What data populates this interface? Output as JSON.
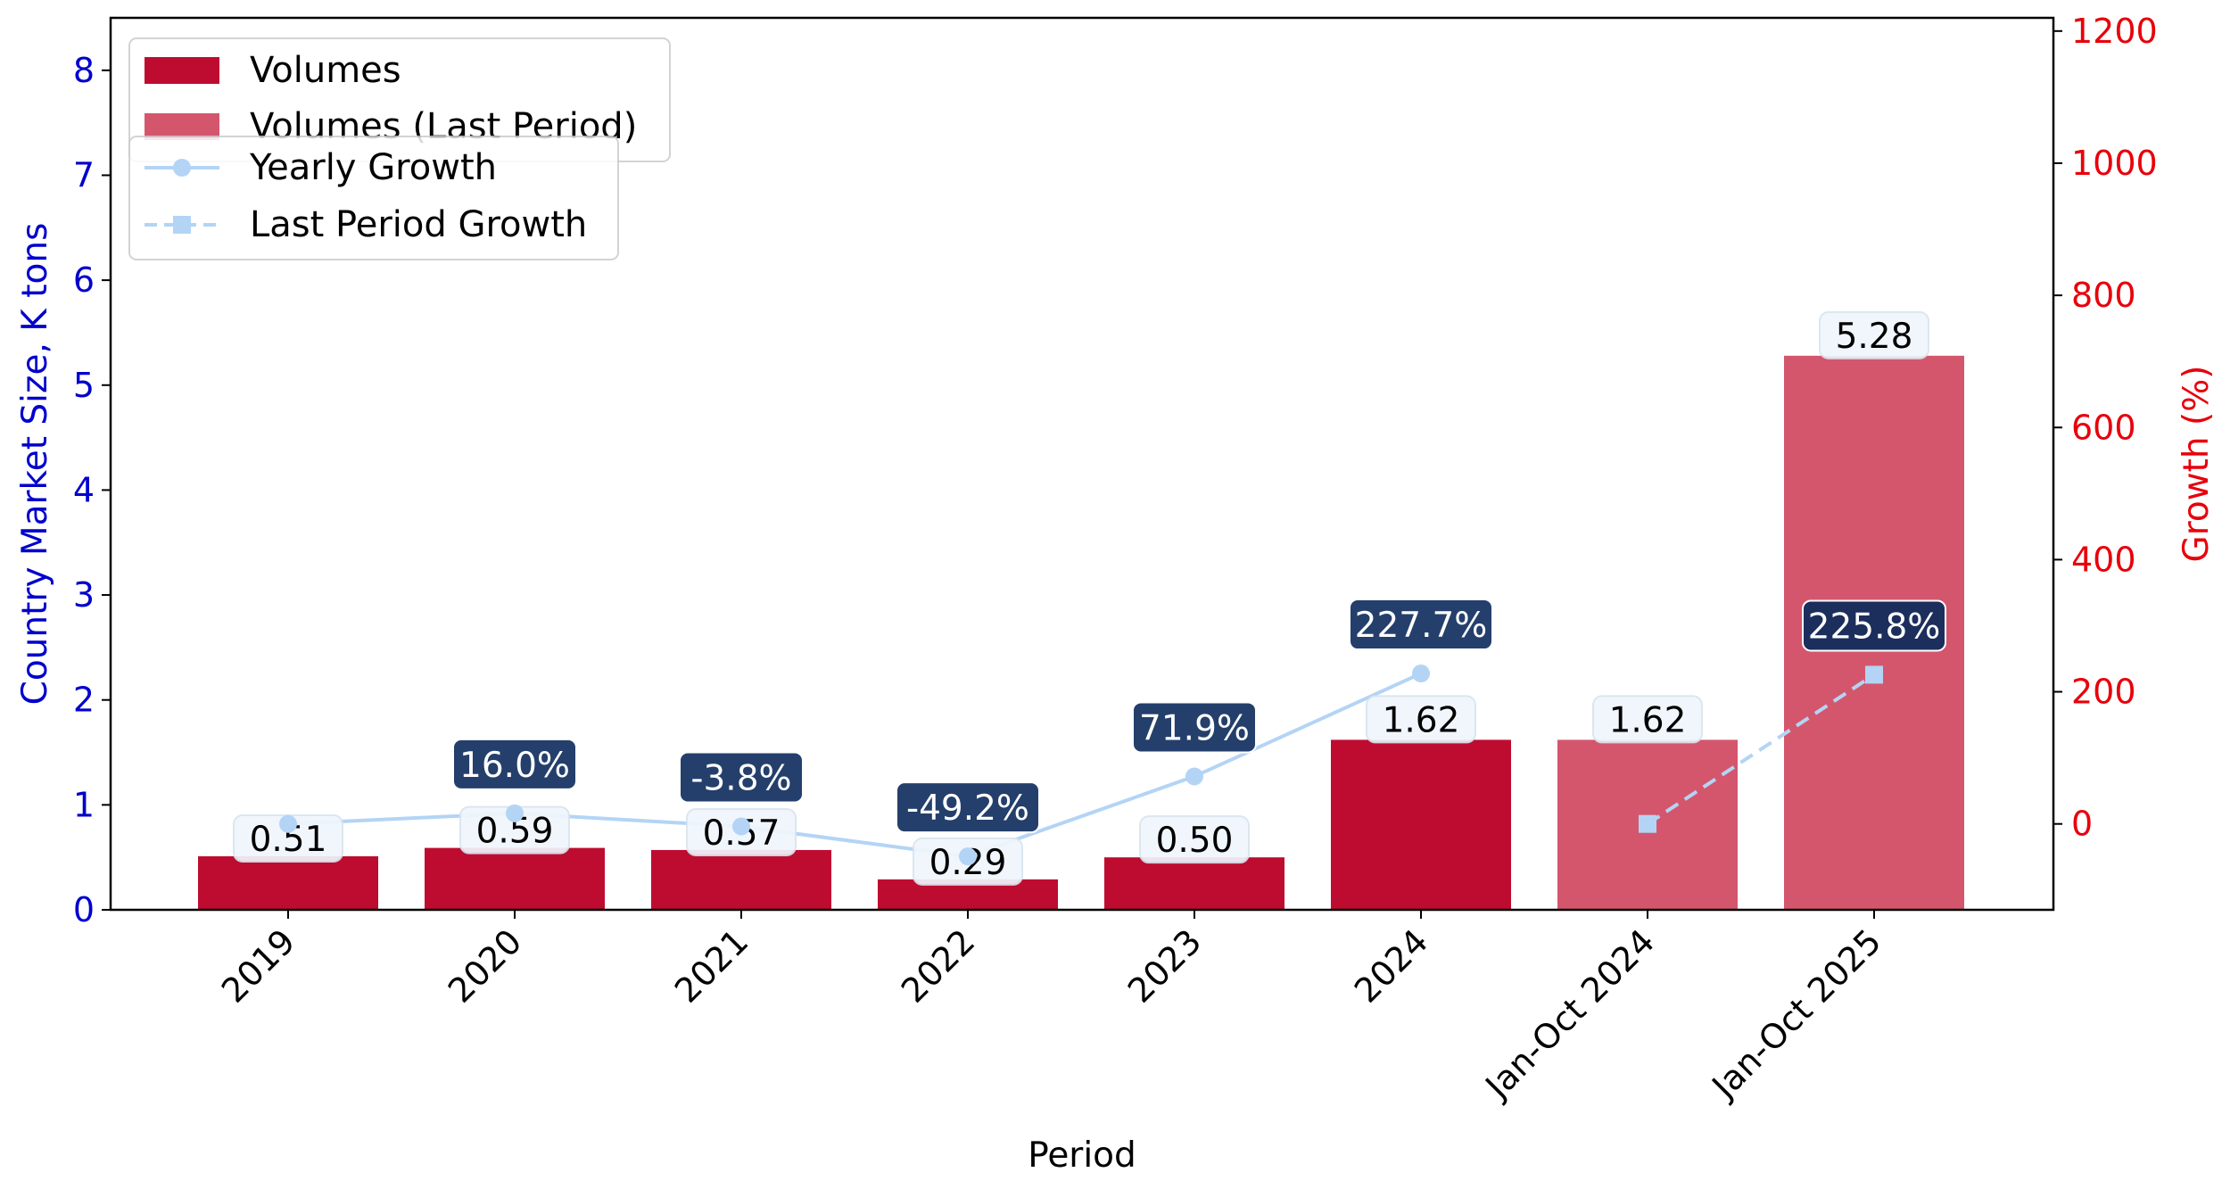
{
  "chart_data": {
    "type": "bar",
    "categories": [
      "2019",
      "2020",
      "2021",
      "2022",
      "2023",
      "2024",
      "Jan-Oct 2024",
      "Jan-Oct 2025"
    ],
    "series": [
      {
        "name": "Volumes",
        "values": [
          0.51,
          0.59,
          0.57,
          0.29,
          0.5,
          1.62,
          null,
          null
        ],
        "value_labels": [
          "0.51",
          "0.59",
          "0.57",
          "0.29",
          "0.50",
          "1.62",
          "",
          ""
        ],
        "color": "#be0c31"
      },
      {
        "name": "Volumes (Last Period)",
        "values": [
          null,
          null,
          null,
          null,
          null,
          null,
          1.62,
          5.28
        ],
        "value_labels": [
          "",
          "",
          "",
          "",
          "",
          "",
          "1.62",
          "5.28"
        ],
        "color": "#d4566d"
      },
      {
        "name": "Yearly Growth",
        "axis": "right",
        "values": [
          0,
          16.0,
          -3.8,
          -49.2,
          71.9,
          227.7,
          null,
          null
        ],
        "value_labels": [
          "",
          "16.0%",
          "-3.8%",
          "-49.2%",
          "71.9%",
          "227.7%",
          "",
          ""
        ],
        "color": "#b3d4f5",
        "marker": "circle",
        "line": "solid"
      },
      {
        "name": "Last Period Growth",
        "axis": "right",
        "values": [
          null,
          null,
          null,
          null,
          null,
          null,
          0,
          225.8
        ],
        "value_labels": [
          "",
          "",
          "",
          "",
          "",
          "",
          "",
          "225.8%"
        ],
        "color": "#b3d4f5",
        "marker": "square",
        "line": "dashed"
      }
    ],
    "xlabel": "Period",
    "ylabel": "Country Market Size, K tons",
    "y2label": "Growth (%)",
    "ylim": [
      0,
      8.5
    ],
    "y2lim": [
      -130,
      1220
    ],
    "yticks": [
      "0",
      "1",
      "2",
      "3",
      "4",
      "5",
      "6",
      "7",
      "8"
    ],
    "y2ticks": [
      "0",
      "200",
      "400",
      "600",
      "800",
      "1000",
      "1200"
    ],
    "grid": false,
    "legend_placement": "top-left",
    "colors": {
      "left_axis": "#0000cc",
      "right_axis": "#e8000b",
      "growth_badge": "#243f6b",
      "last_growth_badge": "#1c2e5c",
      "value_badge": "#f0f6fc"
    }
  }
}
